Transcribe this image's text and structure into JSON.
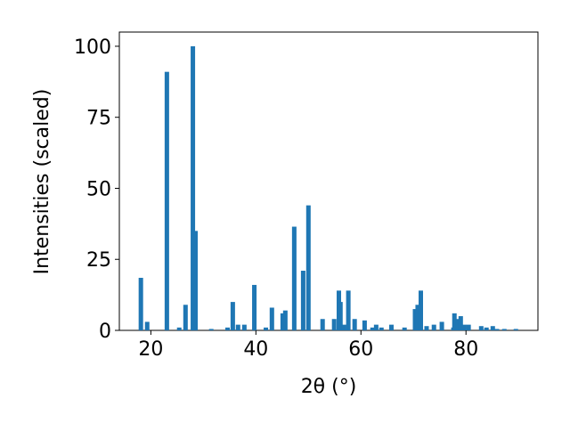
{
  "chart_data": {
    "type": "bar",
    "x_label": "2θ (°)",
    "y_label": "Intensities (scaled)",
    "color": "#1f77b4",
    "x": [
      18.1,
      19.3,
      23.05,
      25.4,
      26.6,
      28.0,
      28.5,
      31.5,
      34.6,
      35.6,
      36.6,
      37.8,
      39.7,
      41.9,
      43.05,
      45.1,
      45.6,
      47.3,
      49.0,
      50.0,
      52.7,
      54.9,
      55.8,
      56.1,
      56.8,
      57.6,
      58.8,
      60.7,
      62.2,
      62.9,
      63.9,
      65.8,
      68.3,
      70.3,
      70.8,
      71.4,
      72.5,
      73.9,
      75.4,
      77.6,
      77.8,
      78.5,
      79.0,
      79.7,
      80.5,
      82.9,
      83.9,
      85.1,
      85.9,
      87.3,
      89.5
    ],
    "values": [
      18.5,
      3,
      91,
      1,
      9,
      100,
      35,
      0.5,
      1,
      10,
      2,
      2,
      16,
      1,
      8,
      6,
      7,
      36.5,
      21,
      44,
      4,
      4,
      14,
      10,
      2,
      14,
      4,
      3.5,
      1,
      2,
      1,
      2,
      1,
      7.5,
      9,
      14,
      1.5,
      2,
      3,
      1,
      6,
      4,
      5,
      2,
      2,
      1.5,
      1,
      1.5,
      0.5,
      0.5,
      0.5
    ],
    "xlim": [
      14,
      93.7
    ],
    "ylim": [
      0,
      105
    ],
    "xticks": [
      20,
      40,
      60,
      80
    ],
    "yticks": [
      0,
      25,
      50,
      75,
      100
    ]
  }
}
